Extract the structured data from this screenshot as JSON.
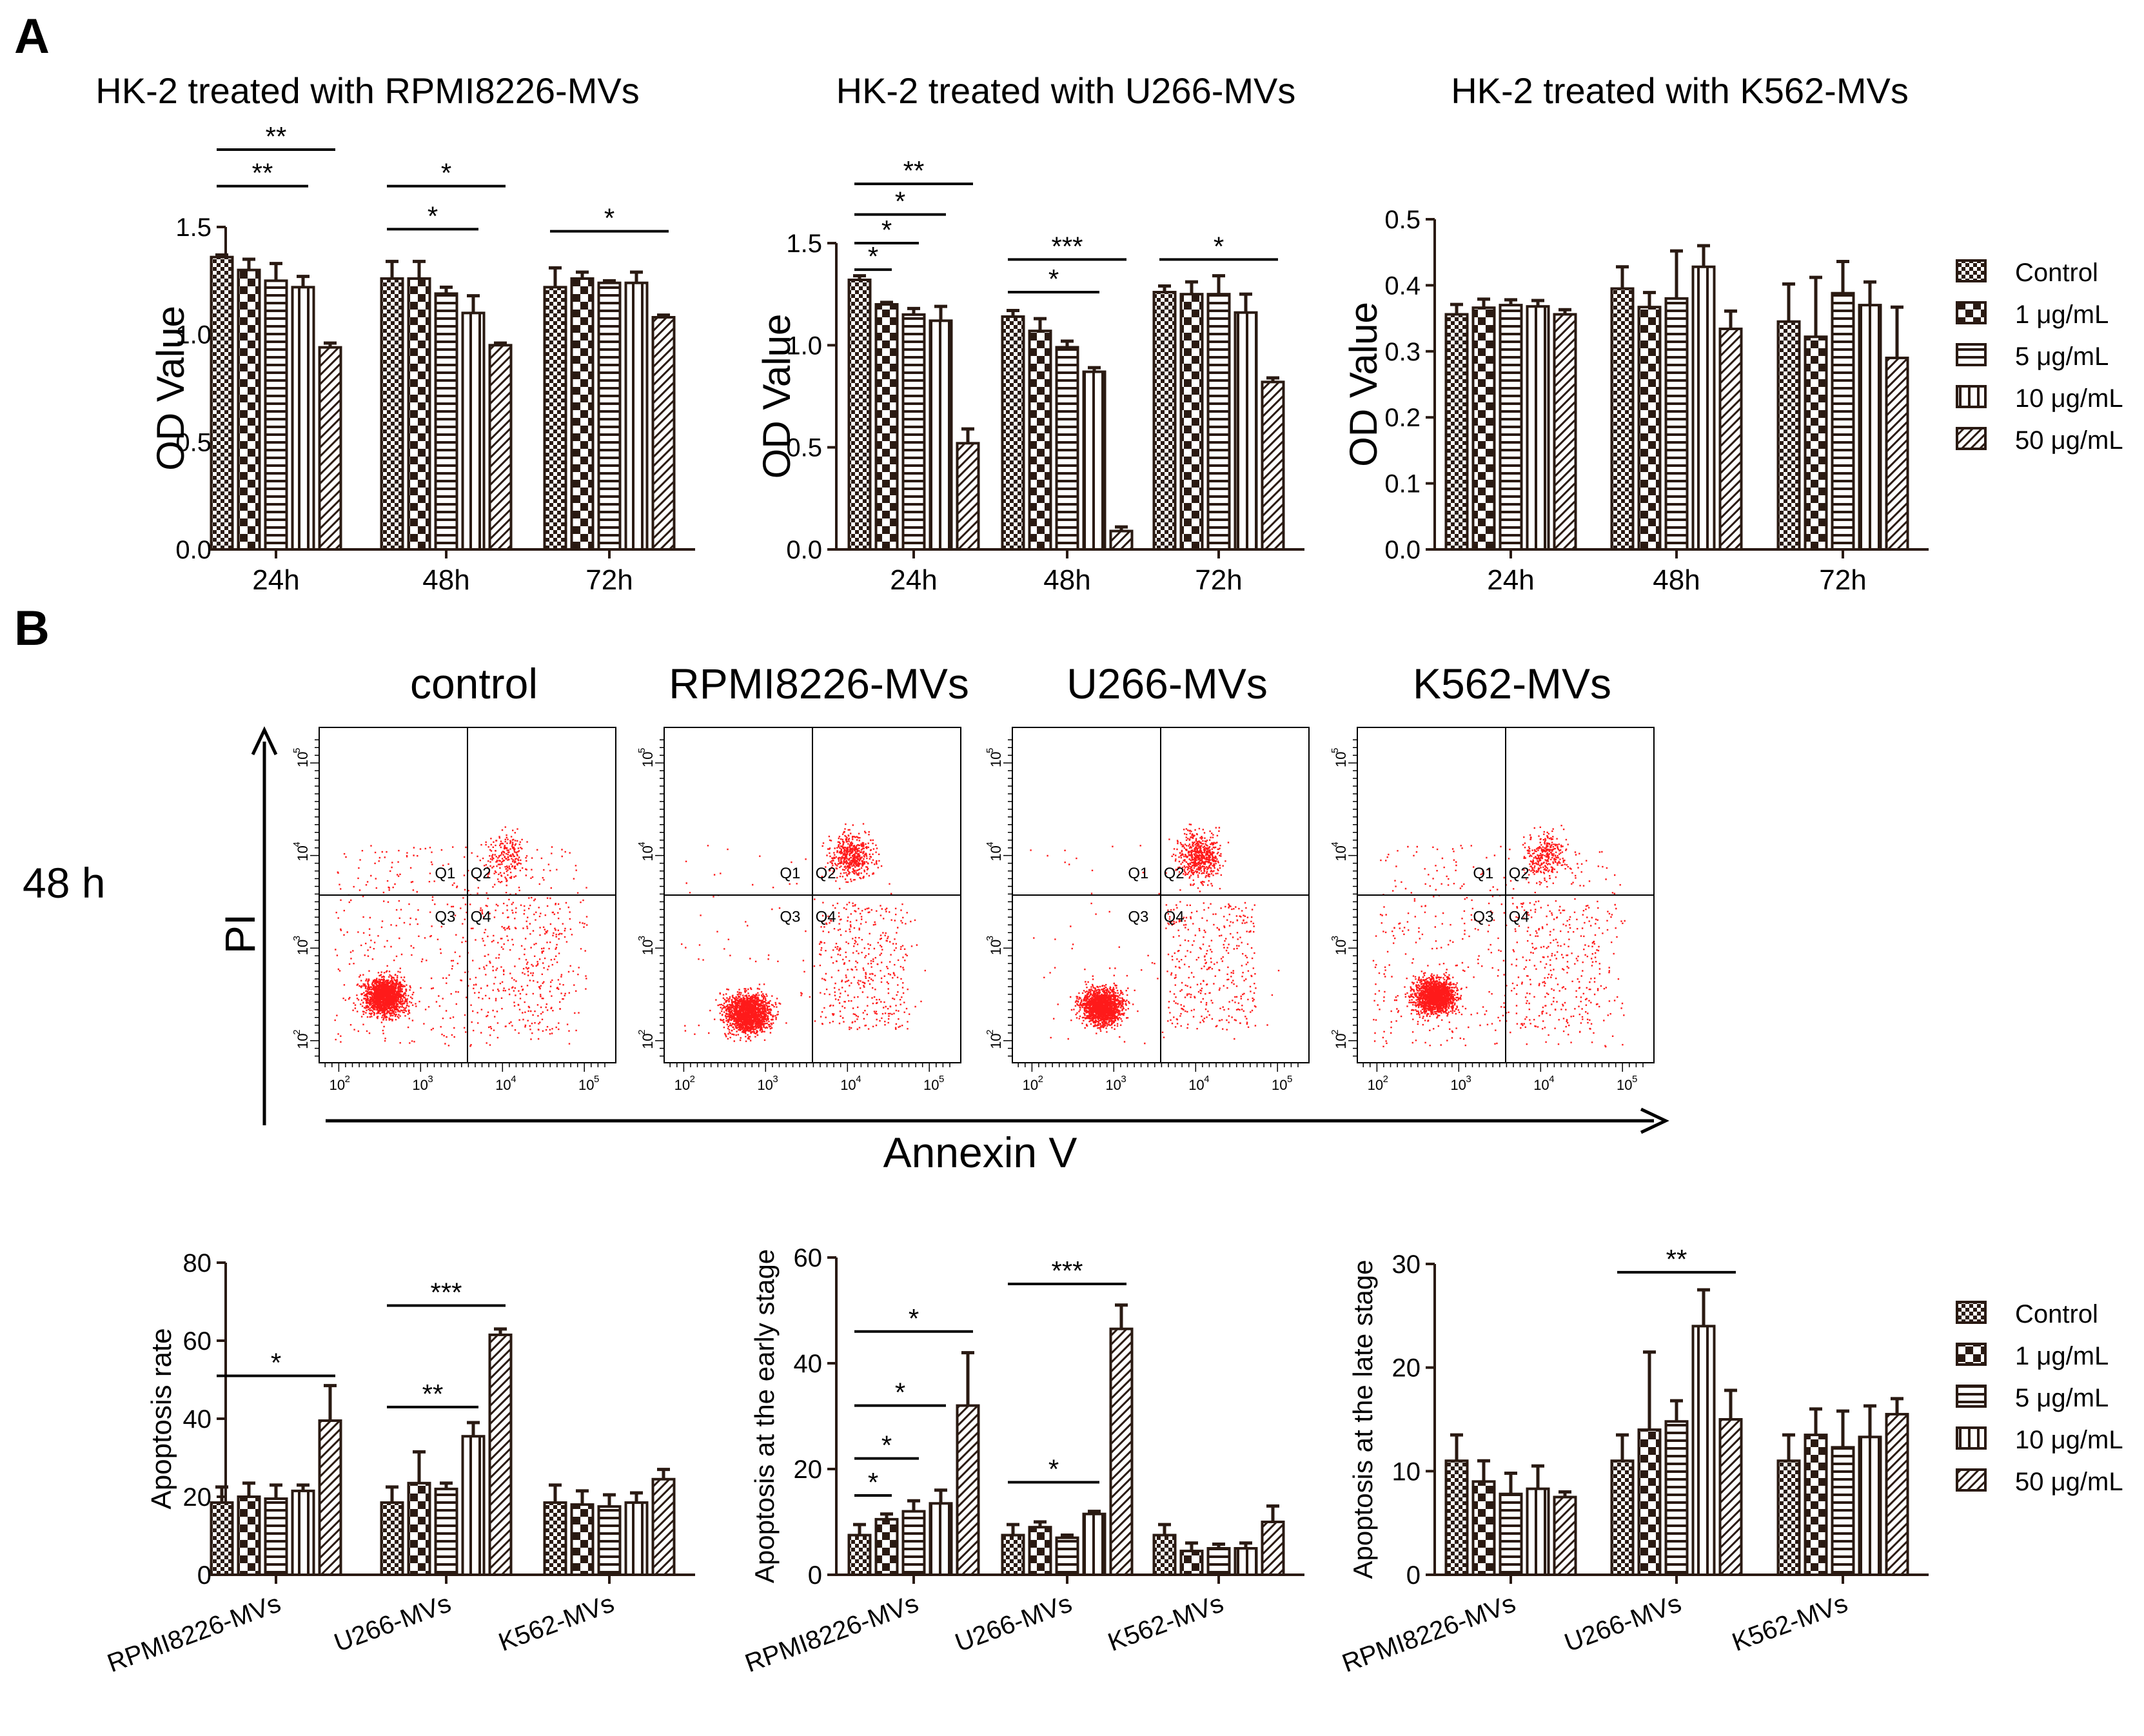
{
  "figure": {
    "panel_a_label": "A",
    "panel_b_label": "B",
    "legend_items": [
      "Control",
      "1 μg/mL",
      "5 μg/mL",
      "10 μg/mL",
      "50 μg/mL"
    ],
    "flow": {
      "time_label": "48 h",
      "y_axis_label": "PI",
      "x_axis_label": "Annexin V",
      "quadrant_labels": [
        "Q1",
        "Q2",
        "Q3",
        "Q4"
      ],
      "tick_powers": [
        "2",
        "3",
        "4",
        "5"
      ],
      "tick_base": "10",
      "panels": [
        "control",
        "RPMI8226-MVs",
        "U266-MVs",
        "K562-MVs"
      ]
    }
  },
  "chart_data": [
    {
      "type": "bar",
      "title": "HK-2 treated with RPMI8226-MVs",
      "xlabel": "",
      "ylabel": "OD Value",
      "ylim": [
        0,
        1.5
      ],
      "yticks": [
        0,
        0.5,
        1.0,
        1.5
      ],
      "ytick_labels": [
        "0.0",
        "0.5",
        "1.0",
        "1.5"
      ],
      "categories": [
        "24h",
        "48h",
        "72h"
      ],
      "series": [
        {
          "name": "Control",
          "values": [
            1.36,
            1.26,
            1.22
          ],
          "errors": [
            0.01,
            0.08,
            0.09
          ]
        },
        {
          "name": "1 μg/mL",
          "values": [
            1.3,
            1.26,
            1.26
          ],
          "errors": [
            0.05,
            0.08,
            0.03
          ]
        },
        {
          "name": "5 μg/mL",
          "values": [
            1.25,
            1.19,
            1.24
          ],
          "errors": [
            0.08,
            0.03,
            0.01
          ]
        },
        {
          "name": "10 μg/mL",
          "values": [
            1.22,
            1.1,
            1.24
          ],
          "errors": [
            0.05,
            0.08,
            0.05
          ]
        },
        {
          "name": "50 μg/mL",
          "values": [
            0.94,
            0.95,
            1.08
          ],
          "errors": [
            0.02,
            0.01,
            0.01
          ]
        }
      ],
      "significance": [
        {
          "label": "**",
          "category": 0,
          "from": 0,
          "to": 4,
          "y": 1.86
        },
        {
          "label": "**",
          "category": 0,
          "from": 0,
          "to": 3,
          "y": 1.69
        },
        {
          "label": "*",
          "category": 1,
          "from": 0,
          "to": 4,
          "y": 1.69
        },
        {
          "label": "*",
          "category": 1,
          "from": 0,
          "to": 3,
          "y": 1.49
        },
        {
          "label": "*",
          "category": 2,
          "from": 0,
          "to": 4,
          "y": 1.48
        }
      ]
    },
    {
      "type": "bar",
      "title": "HK-2 treated with U266-MVs",
      "xlabel": "",
      "ylabel": "OD Value",
      "ylim": [
        0,
        1.5
      ],
      "yticks": [
        0,
        0.5,
        1.0,
        1.5
      ],
      "ytick_labels": [
        "0.0",
        "0.5",
        "1.0",
        "1.5"
      ],
      "categories": [
        "24h",
        "48h",
        "72h"
      ],
      "series": [
        {
          "name": "Control",
          "values": [
            1.32,
            1.14,
            1.26
          ],
          "errors": [
            0.02,
            0.03,
            0.03
          ]
        },
        {
          "name": "1 μg/mL",
          "values": [
            1.2,
            1.07,
            1.25
          ],
          "errors": [
            0.01,
            0.06,
            0.06
          ]
        },
        {
          "name": "5 μg/mL",
          "values": [
            1.15,
            0.99,
            1.25
          ],
          "errors": [
            0.03,
            0.03,
            0.09
          ]
        },
        {
          "name": "10 μg/mL",
          "values": [
            1.12,
            0.87,
            1.16
          ],
          "errors": [
            0.07,
            0.02,
            0.09
          ]
        },
        {
          "name": "50 μg/mL",
          "values": [
            0.52,
            0.09,
            0.82
          ],
          "errors": [
            0.07,
            0.02,
            0.02
          ]
        }
      ],
      "significance": [
        {
          "label": "**",
          "category": 0,
          "from": 0,
          "to": 4,
          "y": 1.79
        },
        {
          "label": "*",
          "category": 0,
          "from": 0,
          "to": 3,
          "y": 1.64
        },
        {
          "label": "*",
          "category": 0,
          "from": 0,
          "to": 2,
          "y": 1.5
        },
        {
          "label": "*",
          "category": 0,
          "from": 0,
          "to": 1,
          "y": 1.37
        },
        {
          "label": "***",
          "category": 1,
          "from": 0,
          "to": 4,
          "y": 1.42
        },
        {
          "label": "*",
          "category": 1,
          "from": 0,
          "to": 3,
          "y": 1.26
        },
        {
          "label": "*",
          "category": 2,
          "from": 0,
          "to": 4,
          "y": 1.42
        }
      ]
    },
    {
      "type": "bar",
      "title": "HK-2 treated with K562-MVs",
      "xlabel": "",
      "ylabel": "OD Value",
      "ylim": [
        0,
        0.5
      ],
      "yticks": [
        0,
        0.1,
        0.2,
        0.3,
        0.4,
        0.5
      ],
      "ytick_labels": [
        "0.0",
        "0.1",
        "0.2",
        "0.3",
        "0.4",
        "0.5"
      ],
      "categories": [
        "24h",
        "48h",
        "72h"
      ],
      "series": [
        {
          "name": "Control",
          "values": [
            0.356,
            0.395,
            0.345
          ],
          "errors": [
            0.015,
            0.033,
            0.057
          ]
        },
        {
          "name": "1 μg/mL",
          "values": [
            0.366,
            0.367,
            0.322
          ],
          "errors": [
            0.013,
            0.022,
            0.09
          ]
        },
        {
          "name": "5 μg/mL",
          "values": [
            0.37,
            0.38,
            0.388
          ],
          "errors": [
            0.008,
            0.072,
            0.048
          ]
        },
        {
          "name": "10 μg/mL",
          "values": [
            0.368,
            0.428,
            0.37
          ],
          "errors": [
            0.009,
            0.032,
            0.035
          ]
        },
        {
          "name": "50 μg/mL",
          "values": [
            0.356,
            0.334,
            0.29
          ],
          "errors": [
            0.007,
            0.027,
            0.077
          ]
        }
      ],
      "significance": []
    },
    {
      "type": "bar",
      "title": "",
      "xlabel": "",
      "ylabel": "Apoptosis rate",
      "ylim": [
        0,
        80
      ],
      "yticks": [
        0,
        20,
        40,
        60,
        80
      ],
      "ytick_labels": [
        "0",
        "20",
        "40",
        "60",
        "80"
      ],
      "categories": [
        "RPMI8226-MVs",
        "U266-MVs",
        "K562-MVs"
      ],
      "series": [
        {
          "name": "Control",
          "values": [
            18.5,
            18.5,
            18.5
          ],
          "errors": [
            4.0,
            4.0,
            4.5
          ]
        },
        {
          "name": "1 μg/mL",
          "values": [
            20.0,
            23.5,
            18.0
          ],
          "errors": [
            3.5,
            8.0,
            3.5
          ]
        },
        {
          "name": "5 μg/mL",
          "values": [
            19.5,
            22.0,
            17.5
          ],
          "errors": [
            3.5,
            1.5,
            3.0
          ]
        },
        {
          "name": "10 μg/mL",
          "values": [
            21.5,
            35.5,
            18.5
          ],
          "errors": [
            1.5,
            3.5,
            2.5
          ]
        },
        {
          "name": "50 μg/mL",
          "values": [
            39.5,
            61.5,
            24.5
          ],
          "errors": [
            9.0,
            1.5,
            2.5
          ]
        }
      ],
      "significance": [
        {
          "label": "*",
          "category": 0,
          "from": 0,
          "to": 4,
          "y": 51
        },
        {
          "label": "***",
          "category": 1,
          "from": 0,
          "to": 4,
          "y": 69
        },
        {
          "label": "**",
          "category": 1,
          "from": 0,
          "to": 3,
          "y": 43
        }
      ]
    },
    {
      "type": "bar",
      "title": "",
      "xlabel": "",
      "ylabel": "Apoptosis at the early stage",
      "ylim": [
        0,
        60
      ],
      "yticks": [
        0,
        20,
        40,
        60
      ],
      "ytick_labels": [
        "0",
        "20",
        "40",
        "60"
      ],
      "categories": [
        "RPMI8226-MVs",
        "U266-MVs",
        "K562-MVs"
      ],
      "series": [
        {
          "name": "Control",
          "values": [
            7.5,
            7.5,
            7.5
          ],
          "errors": [
            2.0,
            2.0,
            2.0
          ]
        },
        {
          "name": "1 μg/mL",
          "values": [
            10.5,
            9.0,
            4.5
          ],
          "errors": [
            1.0,
            1.0,
            1.5
          ]
        },
        {
          "name": "5 μg/mL",
          "values": [
            12.0,
            7.0,
            5.0
          ],
          "errors": [
            2.0,
            0.5,
            0.8
          ]
        },
        {
          "name": "10 μg/mL",
          "values": [
            13.5,
            11.5,
            5.0
          ],
          "errors": [
            2.5,
            0.5,
            1.0
          ]
        },
        {
          "name": "50 μg/mL",
          "values": [
            32.0,
            46.5,
            10.0
          ],
          "errors": [
            10.0,
            4.5,
            3.0
          ]
        }
      ],
      "significance": [
        {
          "label": "*",
          "category": 0,
          "from": 0,
          "to": 4,
          "y": 46
        },
        {
          "label": "*",
          "category": 0,
          "from": 0,
          "to": 3,
          "y": 32
        },
        {
          "label": "*",
          "category": 0,
          "from": 0,
          "to": 2,
          "y": 22
        },
        {
          "label": "*",
          "category": 0,
          "from": 0,
          "to": 1,
          "y": 15
        },
        {
          "label": "***",
          "category": 1,
          "from": 0,
          "to": 4,
          "y": 55
        },
        {
          "label": "*",
          "category": 1,
          "from": 0,
          "to": 3,
          "y": 17.5
        }
      ]
    },
    {
      "type": "bar",
      "title": "",
      "xlabel": "",
      "ylabel": "Apoptosis at the late stage",
      "ylim": [
        0,
        30
      ],
      "yticks": [
        0,
        10,
        20,
        30
      ],
      "ytick_labels": [
        "0",
        "10",
        "20",
        "30"
      ],
      "categories": [
        "RPMI8226-MVs",
        "U266-MVs",
        "K562-MVs"
      ],
      "series": [
        {
          "name": "Control",
          "values": [
            11.0,
            11.0,
            11.0
          ],
          "errors": [
            2.5,
            2.5,
            2.5
          ]
        },
        {
          "name": "1 μg/mL",
          "values": [
            9.0,
            14.0,
            13.5
          ],
          "errors": [
            2.0,
            7.5,
            2.5
          ]
        },
        {
          "name": "5 μg/mL",
          "values": [
            7.8,
            14.8,
            12.3
          ],
          "errors": [
            2.0,
            2.0,
            3.5
          ]
        },
        {
          "name": "10 μg/mL",
          "values": [
            8.3,
            24.0,
            13.3
          ],
          "errors": [
            2.2,
            3.5,
            3.0
          ]
        },
        {
          "name": "50 μg/mL",
          "values": [
            7.5,
            15.0,
            15.5
          ],
          "errors": [
            0.5,
            2.8,
            1.5
          ]
        }
      ],
      "significance": [
        {
          "label": "**",
          "category": 1,
          "from": 0,
          "to": 4,
          "y": 29.2
        }
      ]
    }
  ]
}
